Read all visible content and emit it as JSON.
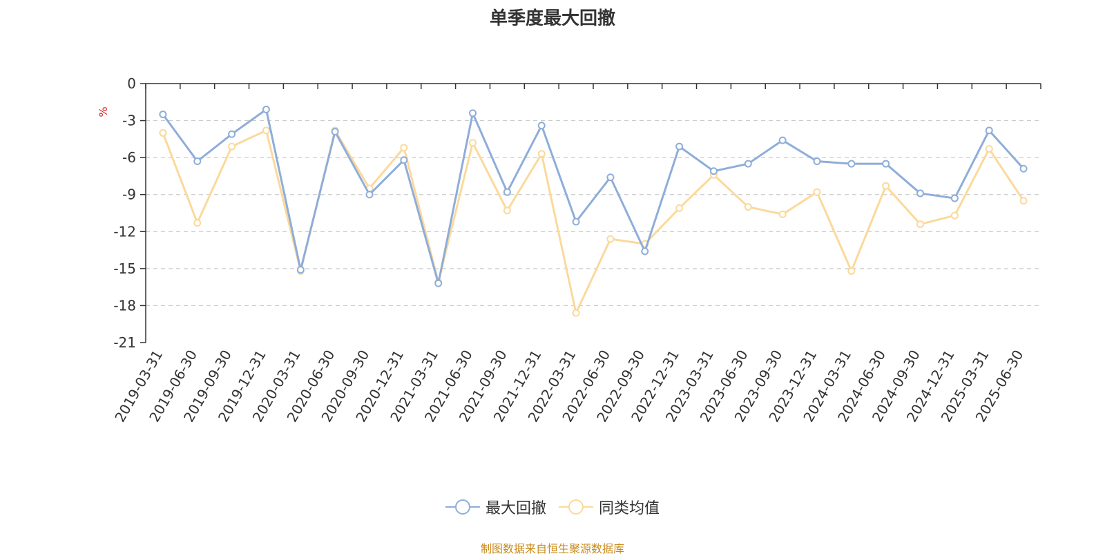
{
  "chart_data": {
    "type": "line",
    "title": "单季度最大回撤",
    "ylabel": "%",
    "xlabel": "",
    "ylim": [
      -21,
      0
    ],
    "yticks": [
      0,
      -3,
      -6,
      -9,
      -12,
      -15,
      -18,
      -21
    ],
    "grid": true,
    "legend_position": "bottom",
    "categories": [
      "2019-03-31",
      "2019-06-30",
      "2019-09-30",
      "2019-12-31",
      "2020-03-31",
      "2020-06-30",
      "2020-09-30",
      "2020-12-31",
      "2021-03-31",
      "2021-06-30",
      "2021-09-30",
      "2021-12-31",
      "2022-03-31",
      "2022-06-30",
      "2022-09-30",
      "2022-12-31",
      "2023-03-31",
      "2023-06-30",
      "2023-09-30",
      "2023-12-31",
      "2024-03-31",
      "2024-06-30",
      "2024-09-30",
      "2024-12-31",
      "2025-03-31",
      "2025-06-30"
    ],
    "series": [
      {
        "name": "最大回撤",
        "color": "#8eadd9",
        "values": [
          -2.5,
          -6.3,
          -4.1,
          -2.1,
          -15.1,
          -3.9,
          -9.0,
          -6.2,
          -16.2,
          -2.4,
          -8.8,
          -3.4,
          -11.2,
          -7.6,
          -13.6,
          -5.1,
          -7.1,
          -6.5,
          -4.6,
          -6.3,
          -6.5,
          -6.5,
          -8.9,
          -9.3,
          -3.8,
          -6.9
        ]
      },
      {
        "name": "同类均值",
        "color": "#fbd99b",
        "values": [
          -4.0,
          -11.3,
          -5.1,
          -3.8,
          -15.2,
          -3.8,
          -8.5,
          -5.2,
          -16.1,
          -4.8,
          -10.3,
          -5.7,
          -18.6,
          -12.6,
          -13.0,
          -10.1,
          -7.4,
          -10.0,
          -10.6,
          -8.8,
          -15.2,
          -8.3,
          -11.4,
          -10.7,
          -5.3,
          -9.5
        ]
      }
    ]
  },
  "source_note": "制图数据来自恒生聚源数据库"
}
